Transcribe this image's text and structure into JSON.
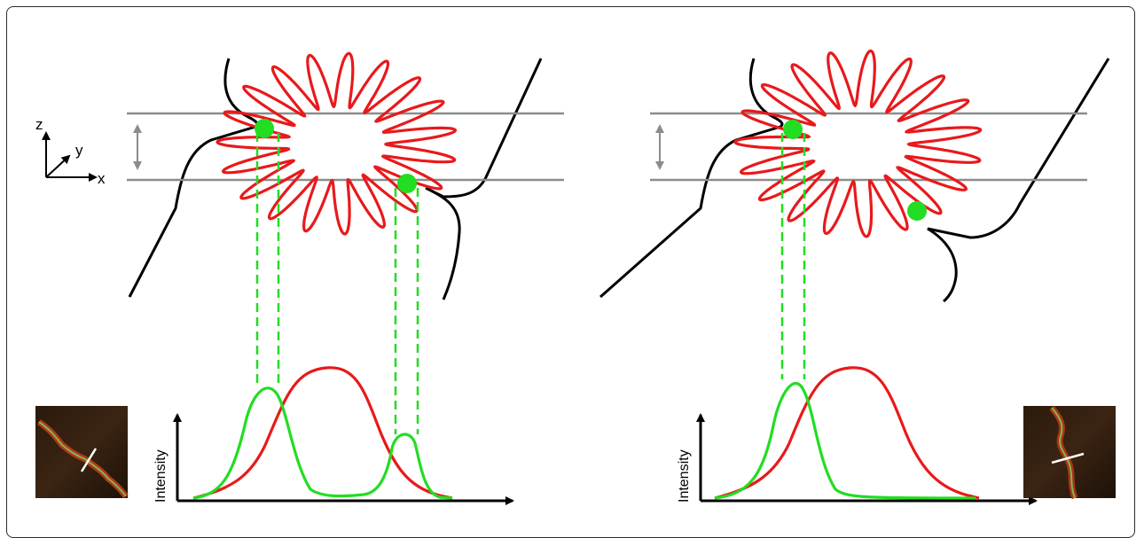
{
  "axis_labels": {
    "z": "z",
    "y": "y",
    "x": "x"
  },
  "ylabel": "Intensity",
  "colors": {
    "membrane": "#e8191b",
    "marker": "#22dd22",
    "guide": "#8c8c8c",
    "outline": "#000000"
  }
}
